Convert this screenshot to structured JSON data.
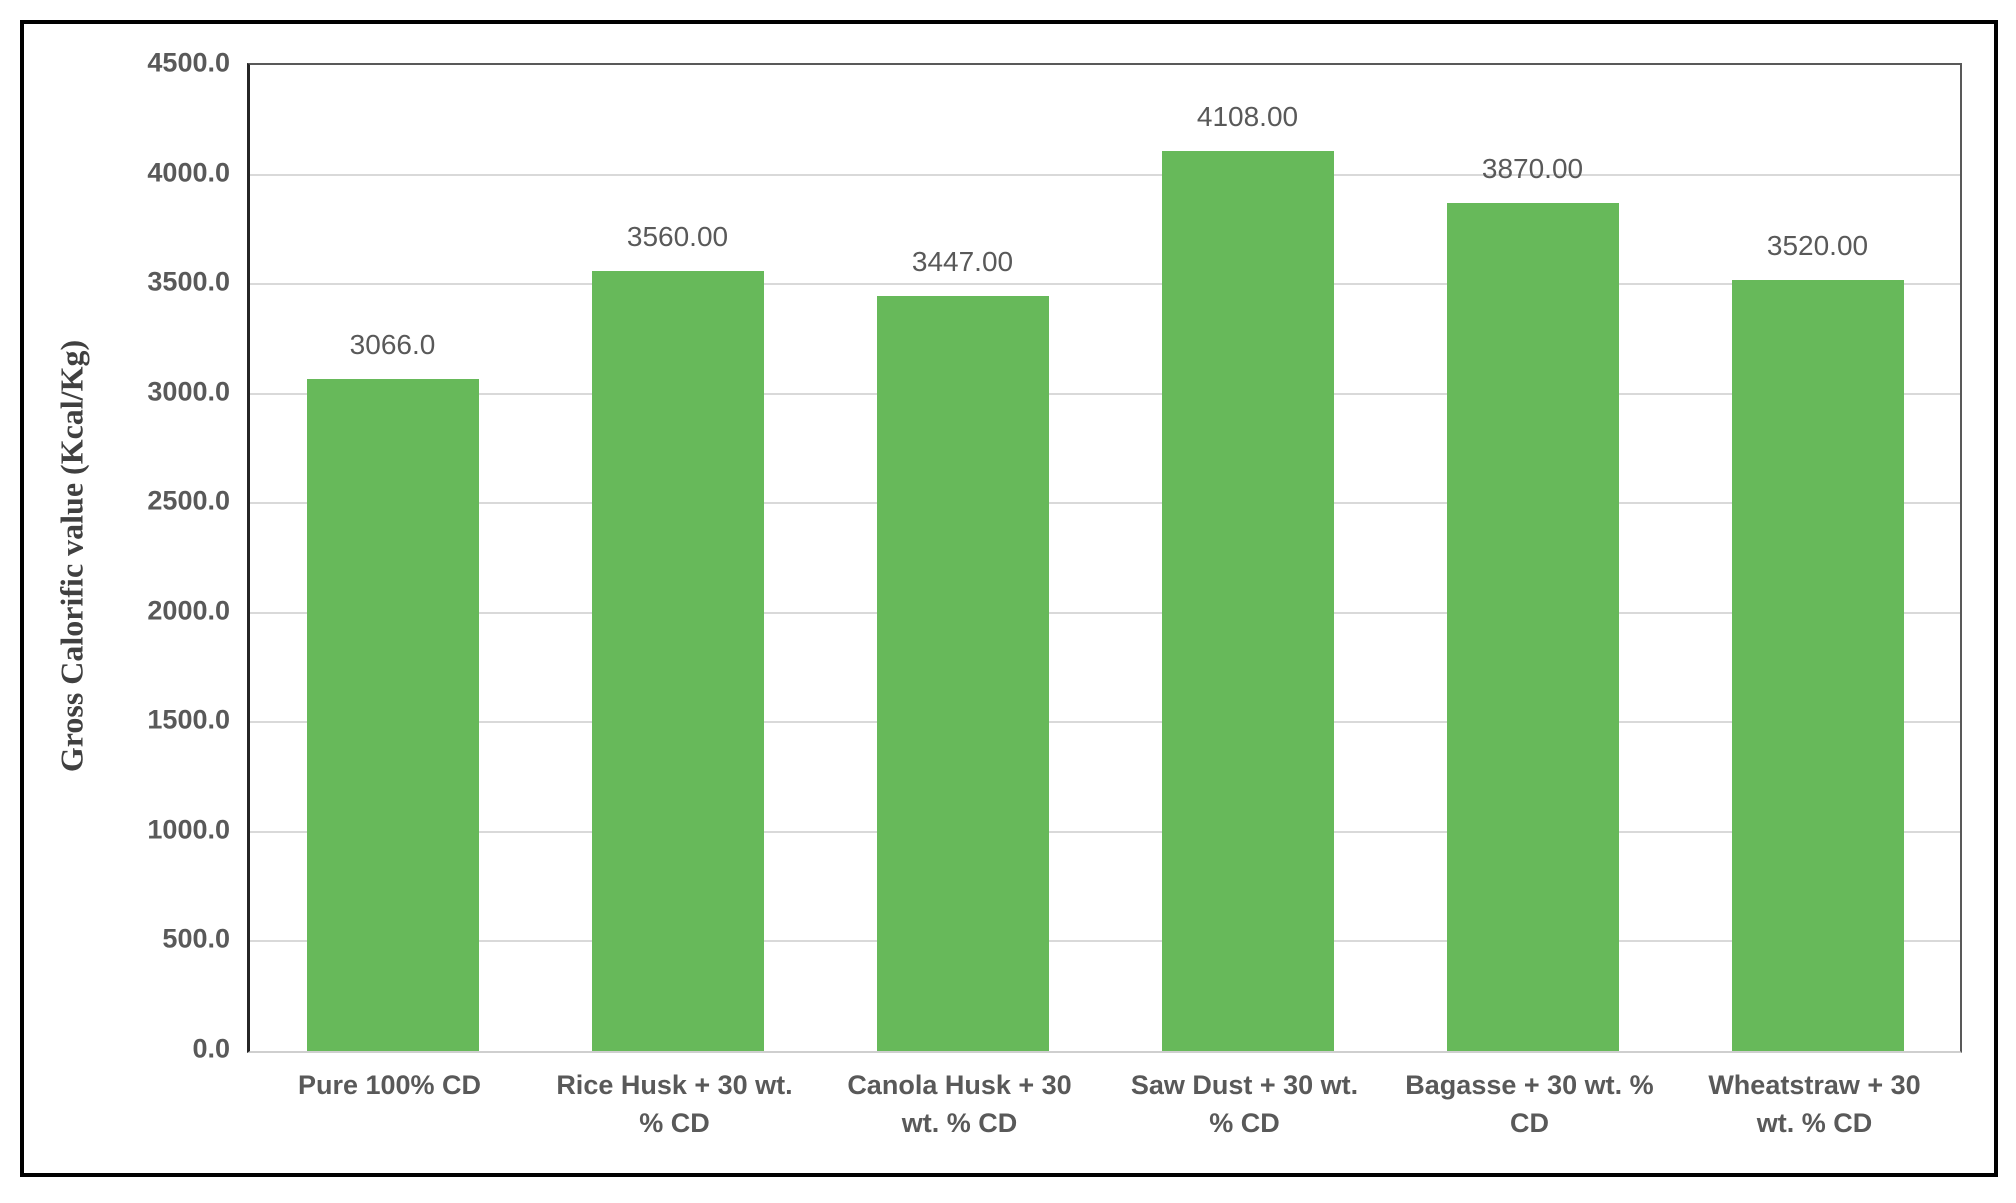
{
  "figure": {
    "background_color": "#ffffff",
    "border_color": "#000000"
  },
  "chart_data": {
    "type": "bar",
    "title": "",
    "xlabel": "",
    "ylabel": "Gross Calorific value (Kcal/Kg)",
    "categories": [
      "Pure 100% CD",
      "Rice Husk + 30 wt. % CD",
      "Canola Husk + 30 wt. % CD",
      "Saw Dust + 30 wt. % CD",
      "Bagasse + 30 wt. % CD",
      "Wheatstraw + 30 wt. % CD"
    ],
    "values": [
      3066,
      3560,
      3447,
      4108,
      3870,
      3520
    ],
    "bar_labels": [
      "3066.0",
      "3560.00",
      "3447.00",
      "4108.00",
      "3870.00",
      "3520.00"
    ],
    "ylim": [
      0,
      4500
    ],
    "ytick_values": [
      0,
      500,
      1000,
      1500,
      2000,
      2500,
      3000,
      3500,
      4000,
      4500
    ],
    "ytick_labels": [
      "0.0",
      "500.0",
      "1000.0",
      "1500.0",
      "2000.0",
      "2500.0",
      "3000.0",
      "3500.0",
      "4000.0",
      "4500.0"
    ],
    "grid": true,
    "legend": "none",
    "bar_color": "#67b95a",
    "grid_color": "#d9d9d9",
    "text_color": "#595959",
    "axis_title_color": "#404040"
  }
}
